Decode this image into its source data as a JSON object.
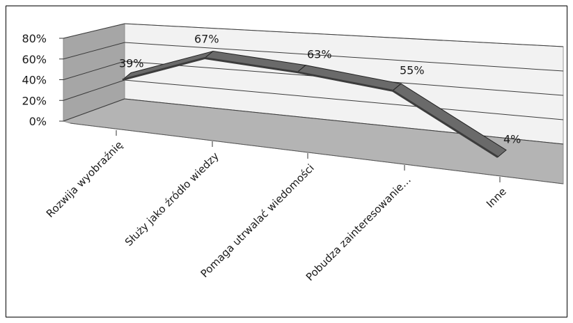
{
  "chart_data": {
    "type": "line",
    "style": "3d",
    "categories": [
      "Rozwija wyobraźnię",
      "Służy jako źródło wiedzy",
      "Pomaga utrwalać wiedomości",
      "Pobudza zainteresowanie…",
      "Inne"
    ],
    "values": [
      39,
      67,
      63,
      55,
      4
    ],
    "data_labels": [
      "39%",
      "67%",
      "63%",
      "55%",
      "4%"
    ],
    "y_ticks": [
      "0%",
      "20%",
      "40%",
      "60%",
      "80%"
    ],
    "ylim": [
      0,
      80
    ],
    "grid": true,
    "legend": "none",
    "colors": {
      "series_top": "#6a6a6a",
      "series_front": "#3c3c3c",
      "back_wall": "#f2f2f2",
      "side_wall": "#a6a6a6",
      "floor": "#b4b4b4",
      "gridline": "#3a3a3a"
    }
  }
}
